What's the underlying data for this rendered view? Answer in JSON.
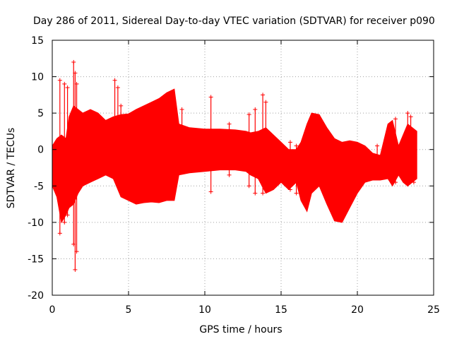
{
  "chart_data": {
    "type": "scatter",
    "title": "Day 286 of 2011, Sidereal Day-to-day VTEC variation (SDTVAR) for receiver p090",
    "xlabel": "GPS time / hours",
    "ylabel": "SDTVAR / TECUs",
    "xlim": [
      0,
      25
    ],
    "ylim": [
      -20,
      15
    ],
    "xticks": [
      0,
      5,
      10,
      15,
      20,
      25
    ],
    "yticks": [
      -20,
      -15,
      -10,
      -5,
      0,
      5,
      10,
      15
    ],
    "grid": true,
    "marker": "+",
    "series": [
      {
        "name": "SDTVAR",
        "color": "#ff0000",
        "envelope": {
          "x": [
            0.0,
            0.3,
            0.6,
            0.9,
            1.1,
            1.4,
            1.7,
            2.0,
            2.5,
            3.0,
            3.5,
            4.0,
            4.5,
            5.0,
            5.5,
            6.0,
            6.5,
            7.0,
            7.5,
            8.0,
            8.3,
            9.0,
            10.0,
            11.0,
            12.0,
            12.7,
            13.0,
            13.5,
            14.0,
            14.5,
            15.0,
            15.5,
            16.0,
            16.3,
            16.7,
            17.0,
            17.5,
            18.0,
            18.5,
            19.0,
            19.5,
            20.0,
            20.5,
            21.0,
            21.5,
            22.0,
            22.3,
            22.7,
            23.0,
            23.3,
            23.6,
            23.9
          ],
          "upper": [
            0.5,
            1.5,
            2.0,
            1.5,
            4.5,
            6.0,
            5.5,
            5.0,
            5.5,
            5.0,
            4.0,
            4.5,
            4.8,
            4.9,
            5.5,
            6.0,
            6.5,
            7.0,
            7.8,
            8.3,
            3.5,
            3.0,
            2.8,
            2.8,
            2.7,
            2.5,
            2.3,
            2.5,
            3.0,
            2.0,
            1.0,
            0.0,
            0.0,
            1.0,
            3.5,
            5.0,
            4.8,
            3.0,
            1.5,
            1.0,
            1.2,
            1.0,
            0.5,
            -0.5,
            -0.8,
            3.5,
            4.0,
            0.5,
            2.0,
            3.5,
            3.0,
            2.5
          ],
          "lower": [
            -5.0,
            -6.5,
            -10.0,
            -9.0,
            -8.0,
            -7.5,
            -6.0,
            -5.0,
            -4.5,
            -4.0,
            -3.5,
            -4.0,
            -6.5,
            -7.0,
            -7.5,
            -7.3,
            -7.2,
            -7.3,
            -7.0,
            -7.0,
            -3.5,
            -3.2,
            -3.0,
            -2.8,
            -2.8,
            -3.0,
            -3.5,
            -4.0,
            -6.0,
            -5.5,
            -4.5,
            -5.5,
            -4.5,
            -7.0,
            -8.5,
            -6.0,
            -5.0,
            -7.5,
            -9.8,
            -10.0,
            -8.0,
            -6.0,
            -4.5,
            -4.2,
            -4.2,
            -4.0,
            -5.0,
            -3.5,
            -4.5,
            -5.0,
            -4.5,
            -4.0
          ]
        },
        "spikes": [
          {
            "x": 0.5,
            "high": 9.5,
            "low": -11.5
          },
          {
            "x": 0.8,
            "high": 9.0,
            "low": -10.0
          },
          {
            "x": 1.0,
            "high": 8.5,
            "low": -9.0
          },
          {
            "x": 1.4,
            "high": 12.0,
            "low": -13.0
          },
          {
            "x": 1.5,
            "high": 10.5,
            "low": -16.5
          },
          {
            "x": 1.6,
            "high": 9.0,
            "low": -14.0
          },
          {
            "x": 4.1,
            "high": 9.5,
            "low": -4.0
          },
          {
            "x": 4.3,
            "high": 8.5,
            "low": -3.5
          },
          {
            "x": 4.5,
            "high": 6.0,
            "low": -5.0
          },
          {
            "x": 8.5,
            "high": 5.5,
            "low": -3.0
          },
          {
            "x": 10.4,
            "high": 7.2,
            "low": -5.8
          },
          {
            "x": 11.6,
            "high": 3.5,
            "low": -3.5
          },
          {
            "x": 12.9,
            "high": 4.8,
            "low": -5.0
          },
          {
            "x": 13.3,
            "high": 5.5,
            "low": -6.0
          },
          {
            "x": 13.8,
            "high": 7.5,
            "low": -6.0
          },
          {
            "x": 14.0,
            "high": 6.5,
            "low": -5.5
          },
          {
            "x": 15.6,
            "high": 1.0,
            "low": -5.5
          },
          {
            "x": 16.0,
            "high": 0.5,
            "low": -6.0
          },
          {
            "x": 21.3,
            "high": 0.5,
            "low": -3.0
          },
          {
            "x": 22.5,
            "high": 4.2,
            "low": -4.5
          },
          {
            "x": 23.3,
            "high": 5.0,
            "low": -4.8
          },
          {
            "x": 23.5,
            "high": 4.5,
            "low": -4.0
          },
          {
            "x": 23.7,
            "high": 2.5,
            "low": -4.5
          }
        ]
      }
    ]
  }
}
